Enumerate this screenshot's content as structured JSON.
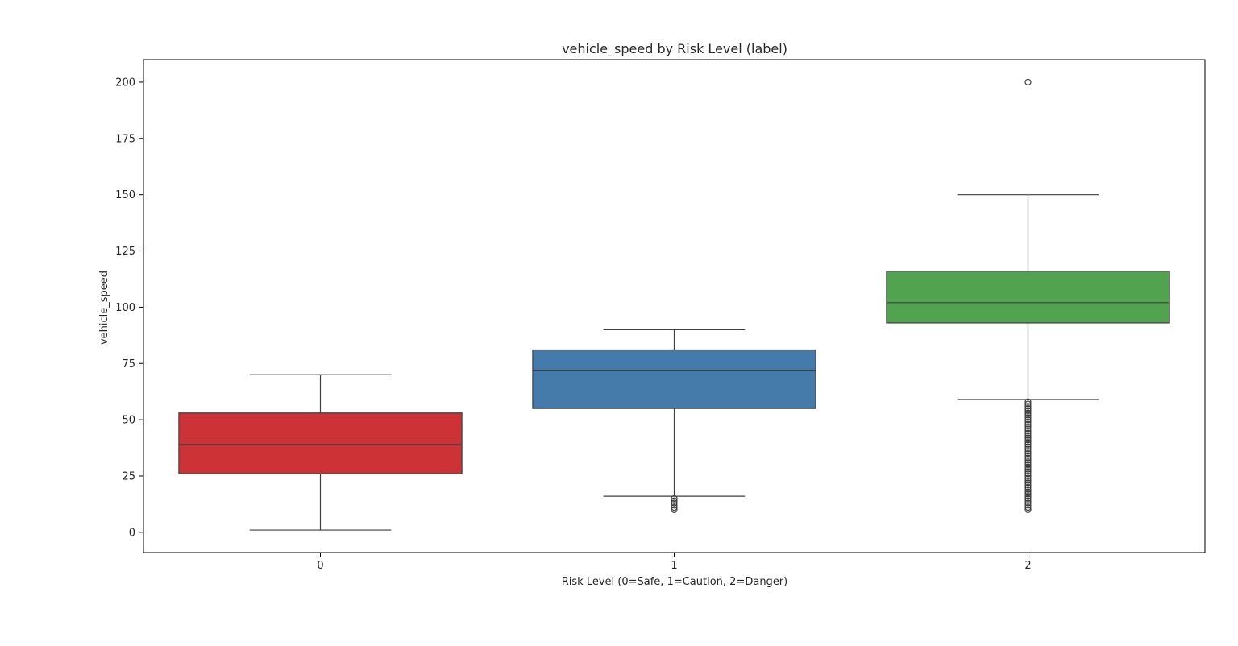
{
  "chart_data": {
    "type": "box",
    "title": "vehicle_speed by Risk Level (label)",
    "xlabel": "Risk Level (0=Safe, 1=Caution, 2=Danger)",
    "ylabel": "vehicle_speed",
    "ylim": [
      -9,
      210
    ],
    "yticks": [
      0,
      25,
      50,
      75,
      100,
      125,
      150,
      175,
      200
    ],
    "grid": false,
    "legend": "none",
    "categories": [
      "0",
      "1",
      "2"
    ],
    "boxes": [
      {
        "category": "0",
        "color": "#cd3236",
        "whisker_low": 1,
        "q1": 26,
        "median": 39,
        "q3": 53,
        "whisker_high": 70,
        "outliers": []
      },
      {
        "category": "1",
        "color": "#457bab",
        "whisker_low": 16,
        "q1": 55,
        "median": 72,
        "q3": 81,
        "whisker_high": 90,
        "outliers": [
          10,
          11,
          12,
          13,
          14,
          15
        ]
      },
      {
        "category": "2",
        "color": "#52a350",
        "whisker_low": 59,
        "q1": 93,
        "median": 102,
        "q3": 116,
        "whisker_high": 150,
        "outliers": [
          10,
          11,
          12,
          13,
          14,
          15,
          16,
          17,
          18,
          19,
          20,
          21,
          22,
          23,
          24,
          25,
          26,
          27,
          28,
          29,
          30,
          31,
          32,
          33,
          34,
          35,
          36,
          37,
          38,
          39,
          40,
          41,
          42,
          43,
          44,
          45,
          46,
          47,
          48,
          49,
          50,
          51,
          52,
          53,
          54,
          55,
          56,
          57,
          58,
          200
        ]
      }
    ]
  }
}
